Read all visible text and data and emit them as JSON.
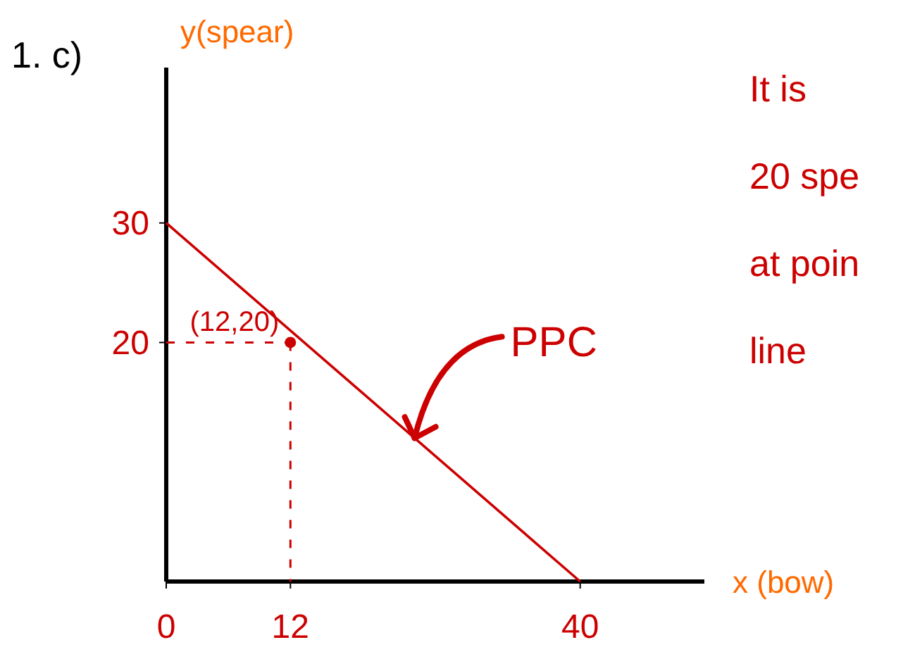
{
  "chart_data": {
    "type": "line",
    "title": "1. c)",
    "xlabel": "x (bow)",
    "ylabel": "y(spear)",
    "xlim": [
      0,
      52
    ],
    "ylim": [
      0,
      43
    ],
    "xticks": [
      0,
      12,
      40
    ],
    "yticks": [
      20,
      30
    ],
    "series": [
      {
        "color": "#cc0000",
        "x": [
          0,
          40
        ],
        "values": [
          30,
          0
        ]
      },
      {
        "type": "scatter",
        "color": "#cc0000",
        "marker": "circle",
        "x": [
          12
        ],
        "values": [
          20
        ]
      }
    ],
    "annotations": [
      {
        "text": "PPC",
        "x": 24,
        "y": 12
      },
      {
        "text": "(12,20)",
        "x": 12,
        "y": 20
      },
      "It is",
      "20 spe",
      "at poin",
      "line"
    ]
  }
}
